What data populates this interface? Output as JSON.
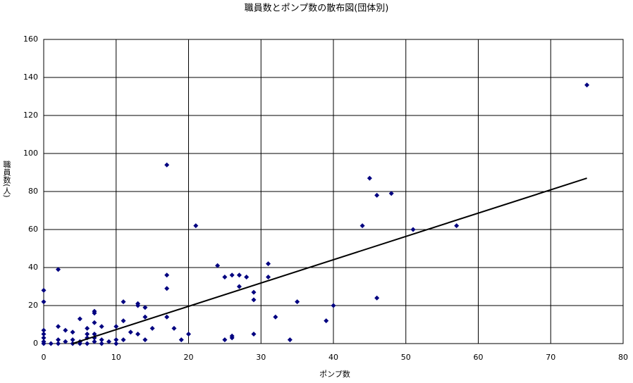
{
  "chart_data": {
    "type": "scatter",
    "title": "職員数とポンプ数の散布図(団体別)",
    "x_label": "ポンプ数",
    "y_label": "職員数(人)",
    "xlim": [
      0,
      80
    ],
    "xticks": [
      0,
      10,
      20,
      30,
      40,
      50,
      60,
      70,
      80
    ],
    "ylim": [
      0,
      160
    ],
    "yticks": [
      0,
      20,
      40,
      60,
      80,
      100,
      120,
      140,
      160
    ],
    "grid": true,
    "series": [
      {
        "color": "#000080",
        "x": [
          75,
          17,
          45,
          48,
          46,
          21,
          44,
          51,
          57,
          24,
          31,
          17,
          26,
          27,
          25,
          28,
          31,
          27,
          17,
          29,
          29,
          35,
          46,
          40,
          32,
          39,
          2,
          0,
          0,
          11,
          13,
          13,
          14,
          7,
          7,
          5,
          17,
          14,
          11,
          15,
          18,
          10,
          8,
          7,
          6,
          2,
          3,
          4,
          12,
          13,
          20,
          29,
          26,
          26,
          25,
          19,
          14,
          11,
          34,
          0,
          0,
          0,
          0,
          0,
          1,
          2,
          3,
          4,
          5,
          6,
          6,
          7,
          7,
          8,
          9,
          10,
          10,
          2,
          4,
          5,
          7,
          8,
          6
        ],
        "values": [
          136,
          94,
          87,
          79,
          78,
          62,
          62,
          60,
          62,
          41,
          42,
          36,
          36,
          36,
          35,
          35,
          35,
          30,
          29,
          27,
          23,
          22,
          24,
          20,
          14,
          12,
          39,
          28,
          22,
          22,
          21,
          20,
          19,
          17,
          16,
          13,
          14,
          14,
          12,
          8,
          8,
          9,
          9,
          11,
          8,
          9,
          7,
          6,
          6,
          5,
          5,
          5,
          4,
          3,
          2,
          2,
          2,
          2,
          2,
          7,
          5,
          3,
          1,
          0,
          0,
          2,
          1,
          2,
          1,
          3,
          5,
          3,
          5,
          2,
          1,
          2,
          0,
          0,
          0,
          0,
          1,
          0,
          0
        ]
      }
    ],
    "trendline": {
      "color": "#000000",
      "x": [
        4,
        75
      ],
      "values": [
        0,
        87
      ]
    }
  }
}
